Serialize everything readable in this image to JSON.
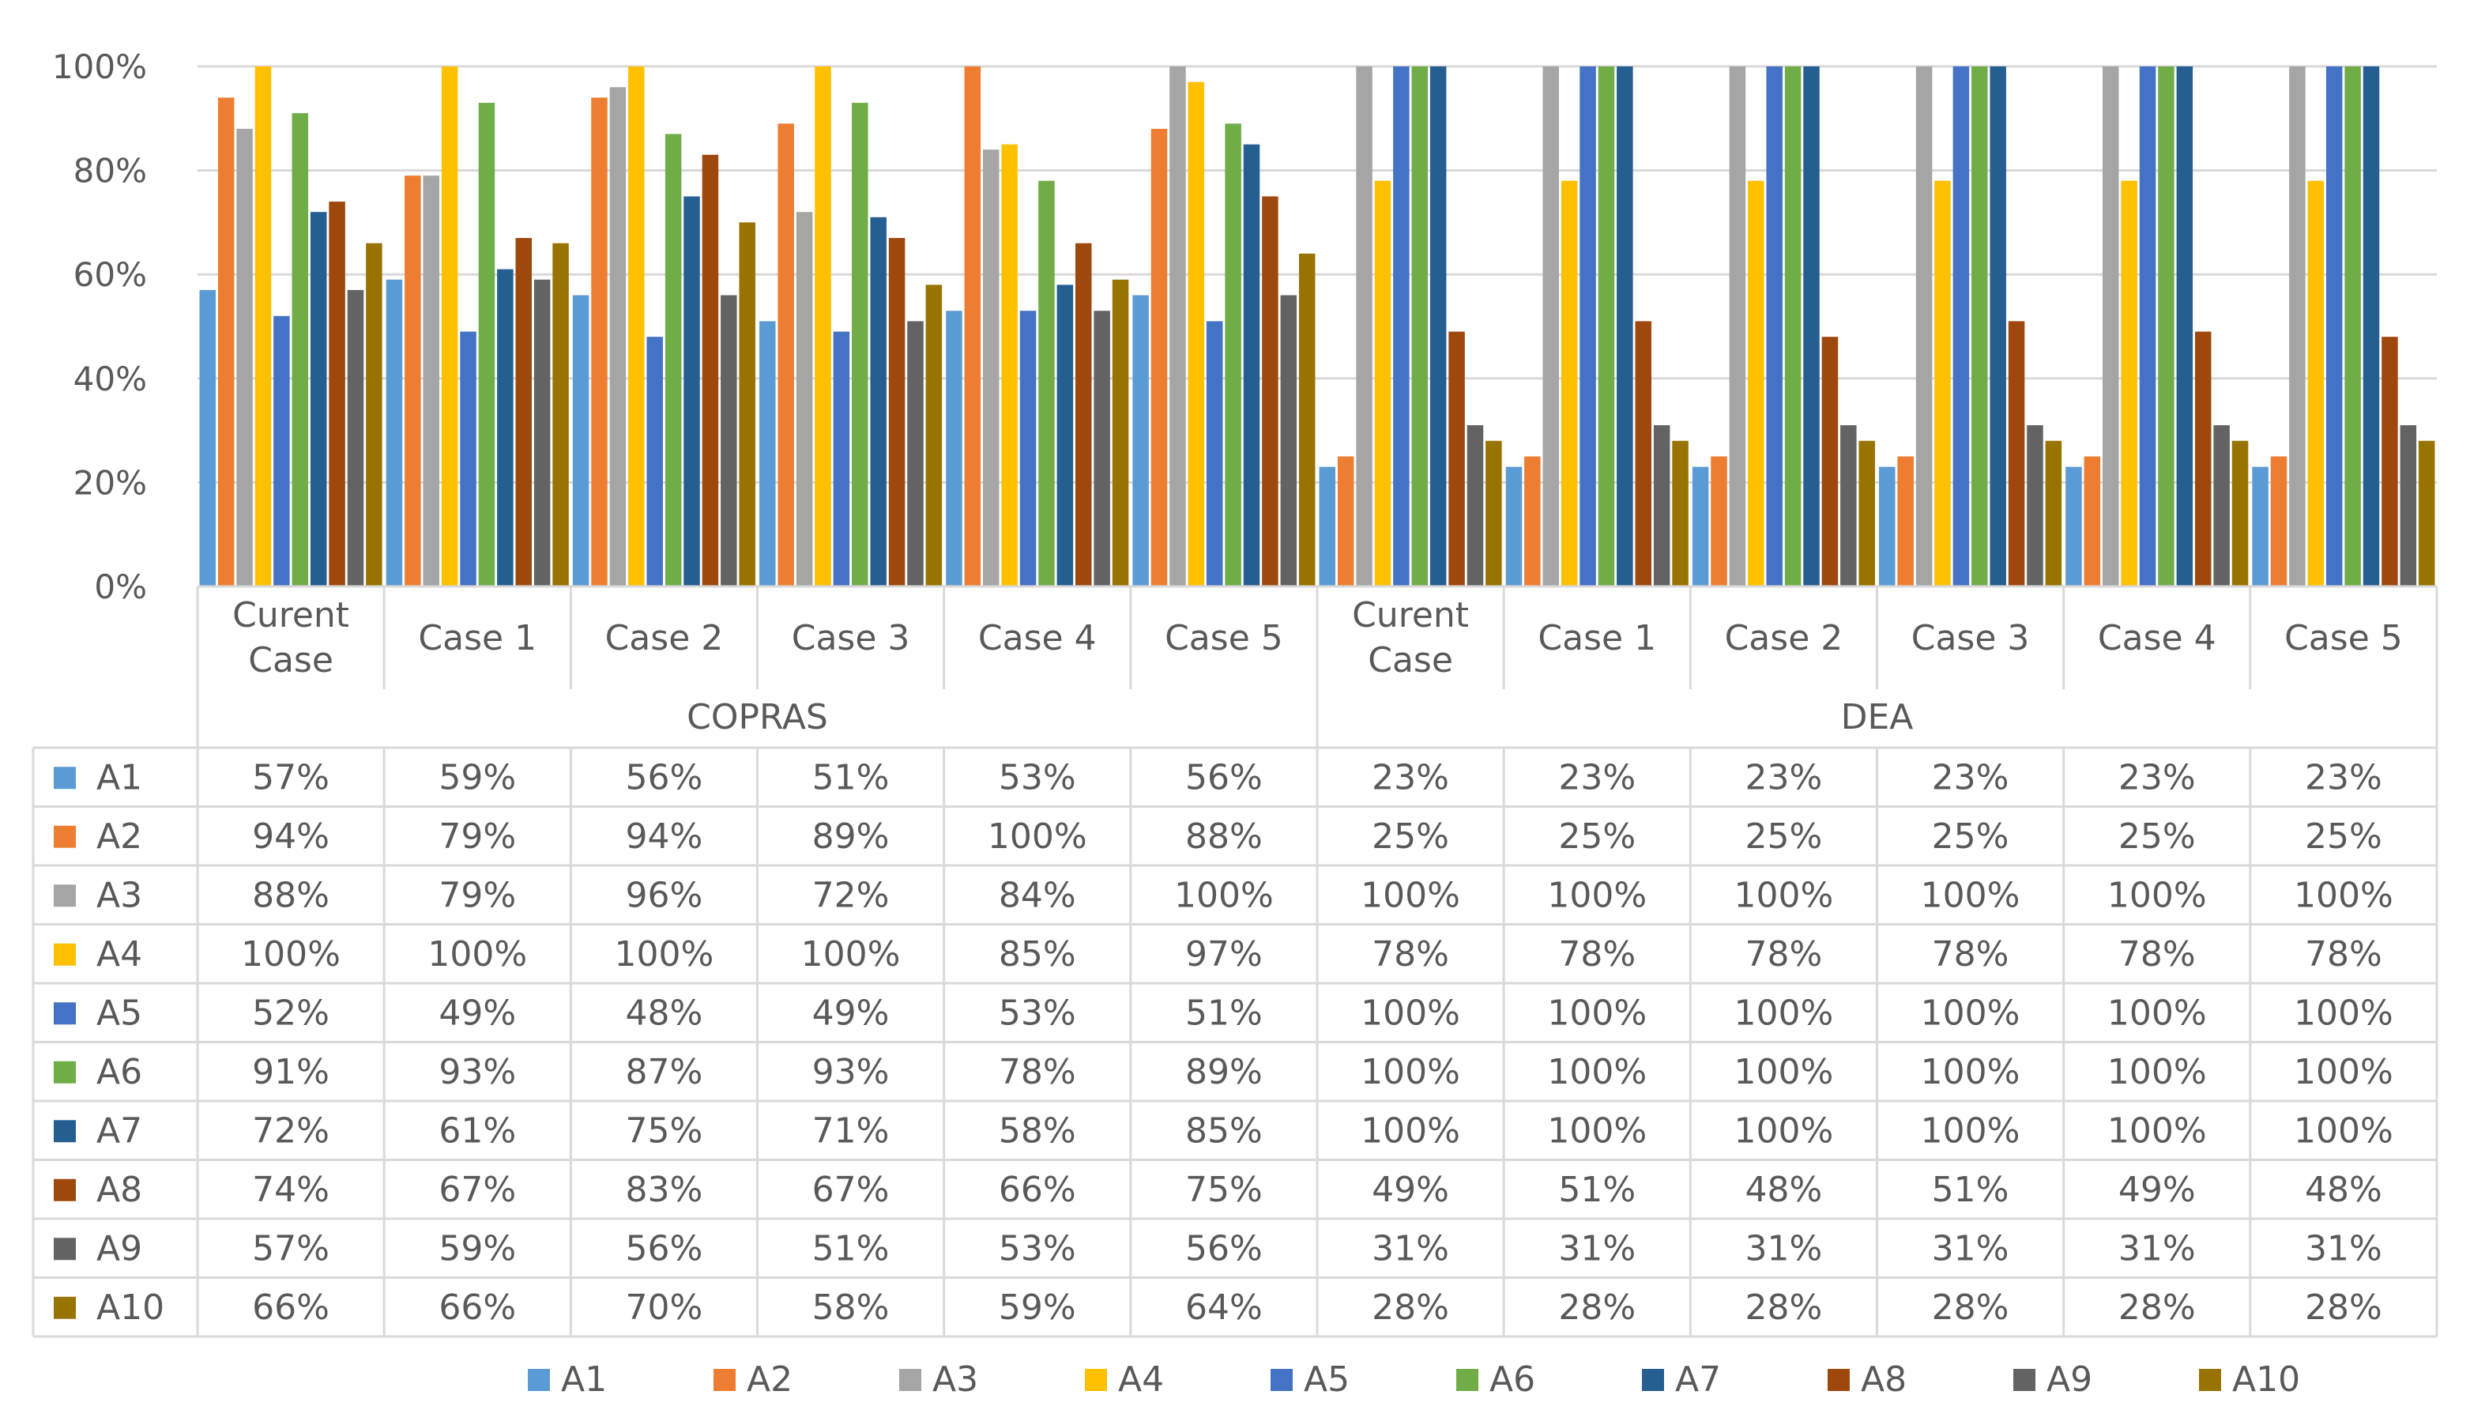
{
  "chart_data": {
    "type": "bar",
    "title": "",
    "xlabel": "",
    "ylabel": "",
    "ylim": [
      0,
      100
    ],
    "y_ticks": [
      "0%",
      "20%",
      "40%",
      "60%",
      "80%",
      "100%"
    ],
    "grid": true,
    "legend_position": "bottom",
    "groups": [
      {
        "name": "COPRAS",
        "categories": [
          "Curent Case",
          "Case 1",
          "Case 2",
          "Case 3",
          "Case 4",
          "Case 5"
        ]
      },
      {
        "name": "DEA",
        "categories": [
          "Curent Case",
          "Case 1",
          "Case 2",
          "Case 3",
          "Case 4",
          "Case 5"
        ]
      }
    ],
    "series": [
      {
        "name": "A1",
        "color": "#5B9BD5",
        "values": [
          57,
          59,
          56,
          51,
          53,
          56,
          23,
          23,
          23,
          23,
          23,
          23
        ]
      },
      {
        "name": "A2",
        "color": "#ED7D31",
        "values": [
          94,
          79,
          94,
          89,
          100,
          88,
          25,
          25,
          25,
          25,
          25,
          25
        ]
      },
      {
        "name": "A3",
        "color": "#A5A5A5",
        "values": [
          88,
          79,
          96,
          72,
          84,
          100,
          100,
          100,
          100,
          100,
          100,
          100
        ]
      },
      {
        "name": "A4",
        "color": "#FFC000",
        "values": [
          100,
          100,
          100,
          100,
          85,
          97,
          78,
          78,
          78,
          78,
          78,
          78
        ]
      },
      {
        "name": "A5",
        "color": "#4472C4",
        "values": [
          52,
          49,
          48,
          49,
          53,
          51,
          100,
          100,
          100,
          100,
          100,
          100
        ]
      },
      {
        "name": "A6",
        "color": "#70AD47",
        "values": [
          91,
          93,
          87,
          93,
          78,
          89,
          100,
          100,
          100,
          100,
          100,
          100
        ]
      },
      {
        "name": "A7",
        "color": "#255E91",
        "values": [
          72,
          61,
          75,
          71,
          58,
          85,
          100,
          100,
          100,
          100,
          100,
          100
        ]
      },
      {
        "name": "A8",
        "color": "#9E480E",
        "values": [
          74,
          67,
          83,
          67,
          66,
          75,
          49,
          51,
          48,
          51,
          49,
          48
        ]
      },
      {
        "name": "A9",
        "color": "#636363",
        "values": [
          57,
          59,
          56,
          51,
          53,
          56,
          31,
          31,
          31,
          31,
          31,
          31
        ]
      },
      {
        "name": "A10",
        "color": "#997300",
        "values": [
          66,
          66,
          70,
          58,
          59,
          64,
          28,
          28,
          28,
          28,
          28,
          28
        ]
      }
    ],
    "table_cells": [
      [
        "57%",
        "59%",
        "56%",
        "51%",
        "53%",
        "56%",
        "23%",
        "23%",
        "23%",
        "23%",
        "23%",
        "23%"
      ],
      [
        "94%",
        "79%",
        "94%",
        "89%",
        "100%",
        "88%",
        "25%",
        "25%",
        "25%",
        "25%",
        "25%",
        "25%"
      ],
      [
        "88%",
        "79%",
        "96%",
        "72%",
        "84%",
        "100%",
        "100%",
        "100%",
        "100%",
        "100%",
        "100%",
        "100%"
      ],
      [
        "100%",
        "100%",
        "100%",
        "100%",
        "85%",
        "97%",
        "78%",
        "78%",
        "78%",
        "78%",
        "78%",
        "78%"
      ],
      [
        "52%",
        "49%",
        "48%",
        "49%",
        "53%",
        "51%",
        "100%",
        "100%",
        "100%",
        "100%",
        "100%",
        "100%"
      ],
      [
        "91%",
        "93%",
        "87%",
        "93%",
        "78%",
        "89%",
        "100%",
        "100%",
        "100%",
        "100%",
        "100%",
        "100%"
      ],
      [
        "72%",
        "61%",
        "75%",
        "71%",
        "58%",
        "85%",
        "100%",
        "100%",
        "100%",
        "100%",
        "100%",
        "100%"
      ],
      [
        "74%",
        "67%",
        "83%",
        "67%",
        "66%",
        "75%",
        "49%",
        "51%",
        "48%",
        "51%",
        "49%",
        "48%"
      ],
      [
        "57%",
        "59%",
        "56%",
        "51%",
        "53%",
        "56%",
        "31%",
        "31%",
        "31%",
        "31%",
        "31%",
        "31%"
      ],
      [
        "66%",
        "66%",
        "70%",
        "58%",
        "59%",
        "64%",
        "28%",
        "28%",
        "28%",
        "28%",
        "28%",
        "28%"
      ]
    ]
  }
}
